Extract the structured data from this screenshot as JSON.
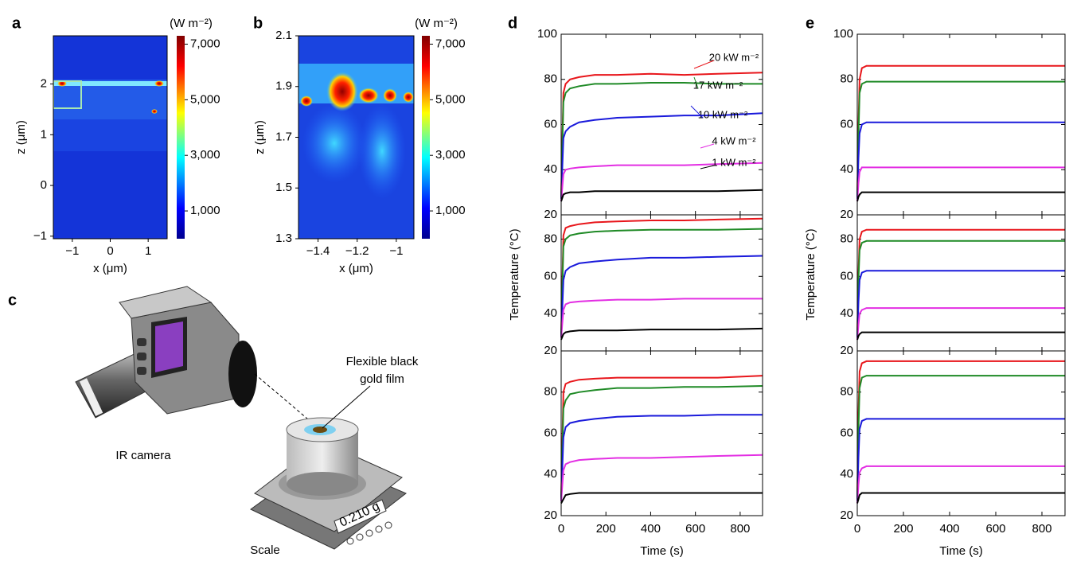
{
  "heatmaps": [
    {
      "label": "a",
      "unit": "(W m⁻²)",
      "xlabel": "x (μm)",
      "zlabel": "z (μm)",
      "xlim": [
        -1.5,
        1.5
      ],
      "xticks": [
        {
          "value": -1,
          "label": "−1"
        },
        0,
        1
      ],
      "zlim": [
        -1.05,
        2.95
      ],
      "zticks": [
        {
          "value": -1,
          "label": "−1"
        },
        0,
        1,
        2
      ],
      "clim": [
        0,
        7300
      ],
      "cticks": [
        {
          "value": 1000,
          "label": "1,000"
        },
        {
          "value": 3000,
          "label": "3,000"
        },
        {
          "value": 5000,
          "label": "5,000"
        },
        {
          "value": 7000,
          "label": "7,000"
        }
      ]
    },
    {
      "label": "b",
      "unit": "(W m⁻²)",
      "xlabel": "x (μm)",
      "zlabel": "z (μm)",
      "xlim": [
        -1.5,
        -0.91
      ],
      "xticks": [
        {
          "value": -1.4,
          "label": "−1.4"
        },
        {
          "value": -1.2,
          "label": "−1.2"
        },
        {
          "value": -1,
          "label": "−1"
        }
      ],
      "zlim": [
        1.3,
        2.1
      ],
      "zticks": [
        1.3,
        1.5,
        1.7,
        1.9,
        2.1
      ],
      "clim": [
        0,
        7300
      ],
      "cticks": [
        {
          "value": 1000,
          "label": "1,000"
        },
        {
          "value": 3000,
          "label": "3,000"
        },
        {
          "value": 5000,
          "label": "5,000"
        },
        {
          "value": 7000,
          "label": "7,000"
        }
      ]
    }
  ],
  "diagram": {
    "label": "c",
    "film_label": [
      "Flexible black",
      "gold film"
    ],
    "camera_label": "IR camera",
    "scale_label": "Scale",
    "scale_reading": "0.210 g"
  },
  "chart_data": [
    {
      "type": "line",
      "label": "d",
      "xlabel": "Time (s)",
      "ylabel": "Temperature (°C)",
      "x": [
        0,
        10,
        20,
        40,
        80,
        150,
        250,
        400,
        550,
        700,
        900
      ],
      "xlim": [
        0,
        900
      ],
      "xticks": [
        0,
        200,
        400,
        600,
        800
      ],
      "subplots": [
        {
          "ylim": [
            20,
            100
          ],
          "yticks": [
            20,
            40,
            60,
            80,
            100
          ],
          "series": [
            {
              "name": "20 kW m⁻²",
              "color": "#e8161b",
              "values": [
                28,
                74,
                78,
                80,
                81,
                82,
                82,
                82.5,
                82,
                82.5,
                83
              ]
            },
            {
              "name": "17 kW m⁻²",
              "color": "#1f8a26",
              "values": [
                27,
                70,
                74,
                76,
                77,
                78,
                78,
                78.5,
                78.5,
                78,
                78
              ]
            },
            {
              "name": "10 kW m⁻²",
              "color": "#1a1adb",
              "values": [
                27,
                54,
                57,
                59,
                61,
                62,
                63,
                63.5,
                64,
                64,
                65
              ]
            },
            {
              "name": "4 kW m⁻²",
              "color": "#e32ee3",
              "values": [
                26,
                38,
                40,
                40.5,
                41,
                41.5,
                42,
                42,
                42,
                42.5,
                43
              ]
            },
            {
              "name": "1 kW m⁻²",
              "color": "#000000",
              "values": [
                26,
                29,
                29.5,
                30,
                30,
                30.5,
                30.5,
                30.5,
                30.5,
                30.5,
                31
              ]
            }
          ]
        },
        {
          "ylim": [
            20,
            93
          ],
          "yticks": [
            20,
            40,
            60,
            80
          ],
          "series": [
            {
              "color": "#e8161b",
              "values": [
                28,
                82,
                86,
                87,
                88,
                89,
                89.5,
                90,
                90,
                90.5,
                91
              ]
            },
            {
              "color": "#1f8a26",
              "values": [
                28,
                76,
                80,
                82,
                83,
                84,
                84.5,
                85,
                85,
                85,
                85.5
              ]
            },
            {
              "color": "#1a1adb",
              "values": [
                27,
                58,
                63,
                65,
                67,
                68,
                69,
                70,
                70,
                70.5,
                71
              ]
            },
            {
              "color": "#e32ee3",
              "values": [
                27,
                42,
                45,
                46,
                46.5,
                47,
                47.5,
                47.5,
                48,
                48,
                48
              ]
            },
            {
              "color": "#000000",
              "values": [
                26,
                29,
                30,
                30.5,
                31,
                31,
                31,
                31.5,
                31.5,
                31.5,
                32
              ]
            }
          ]
        },
        {
          "ylim": [
            20,
            100
          ],
          "yticks": [
            20,
            40,
            60,
            80
          ],
          "series": [
            {
              "color": "#e8161b",
              "values": [
                28,
                80,
                84,
                85,
                86,
                86.5,
                87,
                87,
                87,
                87,
                88
              ]
            },
            {
              "color": "#1f8a26",
              "values": [
                28,
                72,
                76,
                79,
                80,
                81,
                82,
                82,
                82.5,
                82.5,
                83
              ]
            },
            {
              "color": "#1a1adb",
              "values": [
                27,
                58,
                63,
                65,
                66,
                67,
                68,
                68.5,
                68.5,
                69,
                69
              ]
            },
            {
              "color": "#e32ee3",
              "values": [
                27,
                42,
                45,
                46,
                47,
                47.5,
                48,
                48,
                48.5,
                49,
                49.5
              ]
            },
            {
              "color": "#000000",
              "values": [
                26,
                28,
                30,
                30.5,
                31,
                31,
                31,
                31,
                31,
                31,
                31
              ]
            }
          ]
        }
      ]
    },
    {
      "type": "line",
      "label": "e",
      "xlabel": "Time (s)",
      "ylabel": "Temperature (°C)",
      "x": [
        0,
        5,
        10,
        20,
        40,
        900
      ],
      "xlim": [
        0,
        900
      ],
      "xticks": [
        0,
        200,
        400,
        600,
        800
      ],
      "subplots": [
        {
          "ylim": [
            20,
            100
          ],
          "yticks": [
            20,
            40,
            60,
            80,
            100
          ],
          "series": [
            {
              "color": "#e8161b",
              "values": [
                28,
                60,
                80,
                85,
                86,
                86
              ]
            },
            {
              "color": "#1f8a26",
              "values": [
                28,
                55,
                74,
                78,
                79,
                79
              ]
            },
            {
              "color": "#1a1adb",
              "values": [
                27,
                45,
                56,
                60,
                61,
                61
              ]
            },
            {
              "color": "#e32ee3",
              "values": [
                26,
                34,
                39,
                41,
                41,
                41
              ]
            },
            {
              "color": "#000000",
              "values": [
                26,
                28,
                29,
                30,
                30,
                30
              ]
            }
          ]
        },
        {
          "ylim": [
            20,
            93
          ],
          "yticks": [
            20,
            40,
            60,
            80
          ],
          "series": [
            {
              "color": "#e8161b",
              "values": [
                28,
                62,
                80,
                84,
                85,
                85
              ]
            },
            {
              "color": "#1f8a26",
              "values": [
                28,
                58,
                74,
                78,
                79,
                79
              ]
            },
            {
              "color": "#1a1adb",
              "values": [
                27,
                46,
                58,
                62,
                63,
                63
              ]
            },
            {
              "color": "#e32ee3",
              "values": [
                26,
                34,
                40,
                42,
                43,
                43
              ]
            },
            {
              "color": "#000000",
              "values": [
                26,
                28,
                29,
                30,
                30,
                30
              ]
            }
          ]
        },
        {
          "ylim": [
            20,
            100
          ],
          "yticks": [
            20,
            40,
            60,
            80
          ],
          "series": [
            {
              "color": "#e8161b",
              "values": [
                28,
                70,
                90,
                94,
                95,
                95
              ]
            },
            {
              "color": "#1f8a26",
              "values": [
                28,
                62,
                82,
                87,
                88,
                88
              ]
            },
            {
              "color": "#1a1adb",
              "values": [
                27,
                48,
                62,
                66,
                67,
                67
              ]
            },
            {
              "color": "#e32ee3",
              "values": [
                26,
                35,
                41,
                43,
                44,
                44
              ]
            },
            {
              "color": "#000000",
              "values": [
                26,
                28,
                30,
                31,
                31,
                31
              ]
            }
          ]
        }
      ]
    }
  ]
}
